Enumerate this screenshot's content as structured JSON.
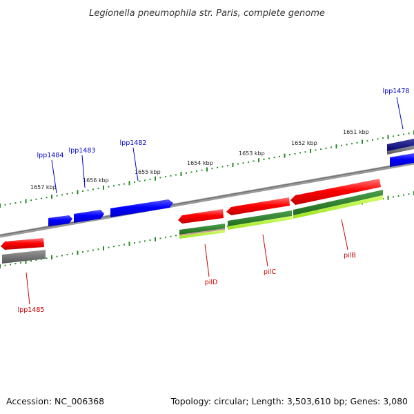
{
  "title": "Legionella pneumophila str. Paris, complete genome",
  "accession": "Accession: NC_006368",
  "topology": "Topology: circular; Length: 3,503,610 bp; Genes: 3,080",
  "scale_labels": [
    "1651 kbp",
    "1652 kbp",
    "1653 kbp",
    "1654 kbp",
    "1655 kbp",
    "1656 kbp",
    "1657 kbp"
  ],
  "genes_forward": [
    "lpp1478",
    "lpp1482",
    "lpp1483",
    "lpp1484"
  ],
  "genes_reverse": [
    "pilB",
    "pilC",
    "pilD",
    "lpp1485"
  ],
  "colors": {
    "forward_gene": "#0000ee",
    "reverse_gene": "#ee0000",
    "backbone": "#808080",
    "tick": "#228b22",
    "label_forward": "#0000cc",
    "label_reverse": "#cc0000",
    "feature_green": "#2e8b2e",
    "feature_lime": "#adff2f",
    "feature_gray": "#666666"
  }
}
